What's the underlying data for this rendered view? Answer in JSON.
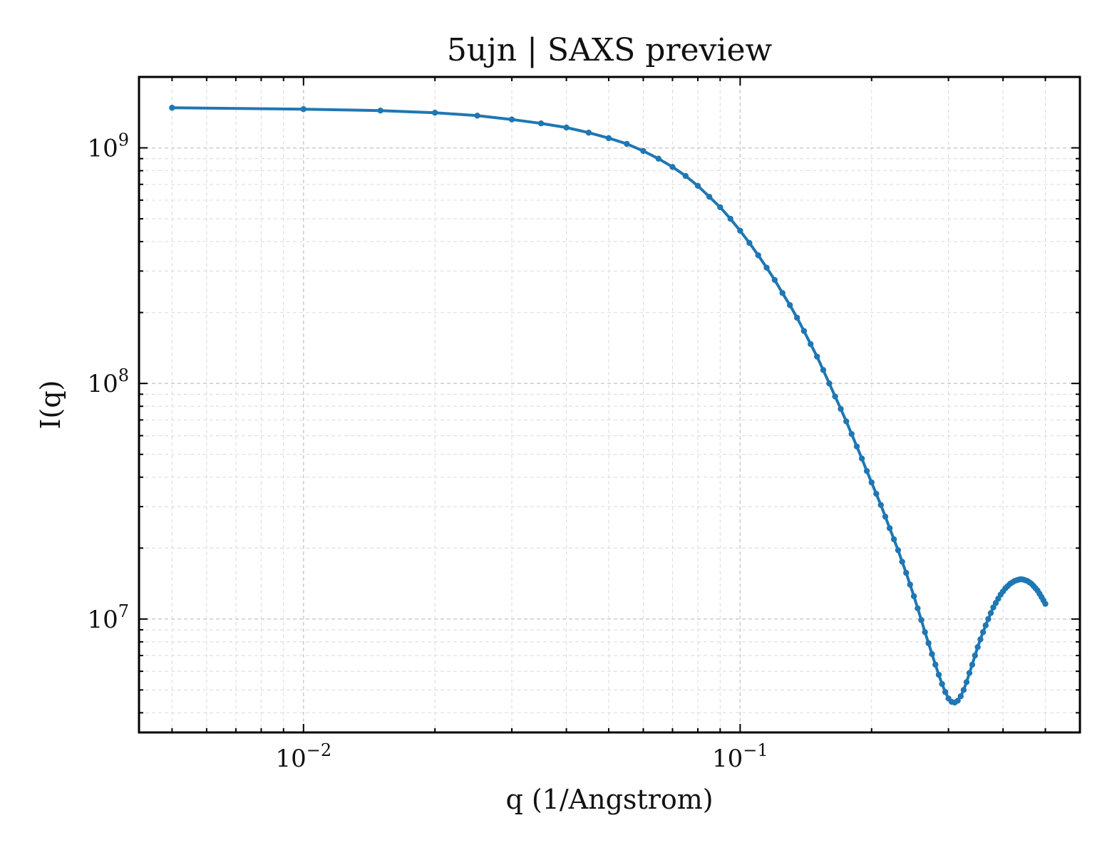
{
  "chart_data": {
    "type": "line",
    "title": "5ujn | SAXS preview",
    "xlabel": "q (1/Angstrom)",
    "ylabel": "I(q)",
    "x_scale": "log",
    "y_scale": "log",
    "xlim": [
      0.0042,
      0.6
    ],
    "ylim": [
      3300000.0,
      2000000000.0
    ],
    "grid": true,
    "line_color": "#1f77b4",
    "x_ticks": [
      {
        "value": 0.01,
        "base": "10",
        "exp": "−2"
      },
      {
        "value": 0.1,
        "base": "10",
        "exp": "−1"
      }
    ],
    "y_ticks": [
      {
        "value": 10000000.0,
        "base": "10",
        "exp": "7"
      },
      {
        "value": 100000000.0,
        "base": "10",
        "exp": "8"
      },
      {
        "value": 1000000000.0,
        "base": "10",
        "exp": "9"
      }
    ],
    "series": [
      {
        "x": [
          0.005,
          0.01,
          0.015,
          0.02,
          0.025,
          0.03,
          0.035,
          0.04,
          0.045,
          0.05,
          0.055,
          0.06,
          0.065,
          0.07,
          0.075,
          0.08,
          0.085,
          0.09,
          0.095,
          0.1,
          0.105,
          0.11,
          0.115,
          0.12,
          0.125,
          0.13,
          0.135,
          0.14,
          0.145,
          0.15,
          0.155,
          0.16,
          0.165,
          0.17,
          0.175,
          0.18,
          0.185,
          0.19,
          0.195,
          0.2,
          0.205,
          0.21,
          0.215,
          0.22,
          0.225,
          0.23,
          0.235,
          0.24,
          0.245,
          0.25,
          0.255,
          0.26,
          0.265,
          0.27,
          0.275,
          0.28,
          0.285,
          0.29,
          0.295,
          0.3,
          0.305,
          0.31,
          0.315,
          0.32,
          0.325,
          0.33,
          0.335,
          0.34,
          0.345,
          0.35,
          0.355,
          0.36,
          0.365,
          0.37,
          0.375,
          0.38,
          0.385,
          0.39,
          0.395,
          0.4,
          0.405,
          0.41,
          0.415,
          0.42,
          0.425,
          0.43,
          0.435,
          0.44,
          0.445,
          0.45,
          0.455,
          0.46,
          0.465,
          0.47,
          0.475,
          0.48,
          0.485,
          0.49,
          0.495,
          0.5
        ],
        "y": [
          1480000000.0,
          1460000000.0,
          1440000000.0,
          1410000000.0,
          1370000000.0,
          1320000000.0,
          1270000000.0,
          1220000000.0,
          1160000000.0,
          1100000000.0,
          1040000000.0,
          970000000.0,
          900000000.0,
          830000000.0,
          760000000.0,
          690000000.0,
          620000000.0,
          560000000.0,
          500000000.0,
          445000000.0,
          395000000.0,
          350000000.0,
          310000000.0,
          275000000.0,
          242000000.0,
          215000000.0,
          190000000.0,
          167000000.0,
          147000000.0,
          130000000.0,
          114000000.0,
          100000000.0,
          88000000.0,
          78000000.0,
          69000000.0,
          61000000.0,
          54000000.0,
          48000000.0,
          42500000.0,
          38000000.0,
          34000000.0,
          30500000.0,
          27200000.0,
          24300000.0,
          21800000.0,
          19600000.0,
          17500000.0,
          15700000.0,
          14000000.0,
          12500000.0,
          11100000.0,
          9900000.0,
          8800000.0,
          7900000.0,
          7100000.0,
          6400000.0,
          5800000.0,
          5300000.0,
          4900000.0,
          4600000.0,
          4450000.0,
          4420000.0,
          4500000.0,
          4700000.0,
          5000000.0,
          5400000.0,
          5900000.0,
          6400000.0,
          7000000.0,
          7600000.0,
          8200000.0,
          8800000.0,
          9400000.0,
          10000000.0,
          10600000.0,
          11200000.0,
          11700000.0,
          12200000.0,
          12700000.0,
          13100000.0,
          13500000.0,
          13800000.0,
          14100000.0,
          14300000.0,
          14500000.0,
          14600000.0,
          14700000.0,
          14750000.0,
          14700000.0,
          14600000.0,
          14500000.0,
          14300000.0,
          14100000.0,
          13800000.0,
          13500000.0,
          13200000.0,
          12800000.0,
          12400000.0,
          12000000.0,
          11600000.0
        ]
      }
    ]
  }
}
